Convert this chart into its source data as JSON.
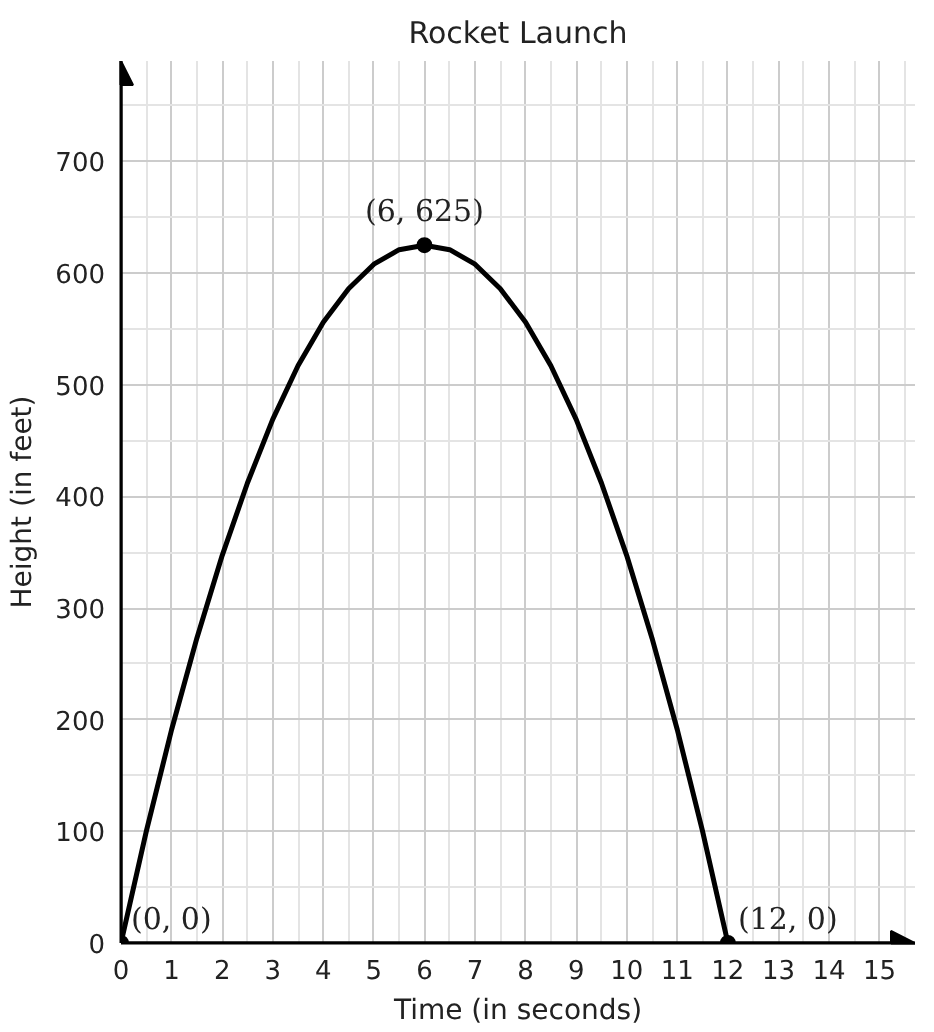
{
  "chart_data": {
    "type": "line",
    "title": "Rocket Launch",
    "xlabel": "Time (in seconds)",
    "ylabel": "Height (in feet)",
    "xlim": [
      0,
      15.7
    ],
    "ylim": [
      0,
      790
    ],
    "xticks": [
      0,
      1,
      2,
      3,
      4,
      5,
      6,
      7,
      8,
      9,
      10,
      11,
      12,
      13,
      14,
      15
    ],
    "yticks": [
      0,
      100,
      200,
      300,
      400,
      500,
      600,
      700
    ],
    "grid": true,
    "series": [
      {
        "color": "#000000",
        "marker": "none",
        "x": [
          0,
          0.5,
          1,
          1.5,
          2,
          2.5,
          3,
          3.5,
          4,
          4.5,
          5,
          5.5,
          6,
          6.5,
          7,
          7.5,
          8,
          8.5,
          9,
          9.5,
          10,
          10.5,
          11,
          11.5,
          12
        ],
        "values": [
          0,
          100,
          191,
          273,
          347,
          412,
          469,
          517,
          556,
          586,
          608,
          621,
          625,
          621,
          608,
          586,
          556,
          517,
          469,
          412,
          347,
          273,
          191,
          100,
          0
        ]
      },
      {
        "type": "scatter",
        "color": "#000000",
        "marker": "circle",
        "x": [
          0,
          6,
          12
        ],
        "values": [
          0,
          625,
          0
        ]
      }
    ],
    "annotations": [
      {
        "text": "(0, 0)",
        "x": 0,
        "y": 0
      },
      {
        "text": "(6, 625)",
        "x": 6,
        "y": 625
      },
      {
        "text": "(12, 0)",
        "x": 12,
        "y": 0
      }
    ]
  }
}
